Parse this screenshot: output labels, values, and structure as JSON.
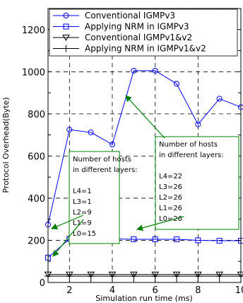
{
  "chart_data": {
    "type": "line",
    "title": "",
    "xlabel": "Simulation run time (ms)",
    "ylabel": "Protocol Overhead(Byte)",
    "xlim": [
      1,
      10
    ],
    "ylim": [
      0,
      1300
    ],
    "xticks": [
      2,
      4,
      6,
      8,
      10
    ],
    "yticks": [
      0,
      200,
      400,
      600,
      800,
      1000,
      1200
    ],
    "grid": true,
    "grid_style": "dashed",
    "legend_position": "top",
    "x": [
      1,
      2,
      3,
      4,
      5,
      6,
      7,
      8,
      9,
      10
    ],
    "series": [
      {
        "name": "Conventional IGMPv3",
        "marker": "circle",
        "color": "#0000ff",
        "values": [
          275,
          725,
          712,
          655,
          1005,
          1005,
          943,
          750,
          872,
          832
        ]
      },
      {
        "name": "Applying NRM in IGMPv3",
        "marker": "square",
        "color": "#0000ff",
        "values": [
          118,
          207,
          198,
          207,
          205,
          205,
          205,
          200,
          198,
          198
        ]
      },
      {
        "name": "Conventional IGMPv1&v2",
        "marker": "triangle-down",
        "color": "#000000",
        "values": [
          38,
          38,
          38,
          38,
          38,
          38,
          38,
          38,
          38,
          38
        ]
      },
      {
        "name": "Applying NRM in IGMPv1&v2",
        "marker": "plus",
        "color": "#000000",
        "values": [
          30,
          30,
          30,
          30,
          30,
          30,
          30,
          30,
          30,
          30
        ]
      }
    ],
    "annotations": [
      {
        "lines": [
          "Number of hosts",
          "in different layers:",
          "",
          "L4=1",
          "L3=1",
          "L2=9",
          "L1=9",
          "L0=15"
        ],
        "box_color": "#008000",
        "arrow_color": "#008000",
        "points_to": [
          [
            1,
            275
          ],
          [
            1,
            118
          ]
        ]
      },
      {
        "lines": [
          "Number of hosts",
          "in different layers:",
          "",
          "L4=22",
          "L3=26",
          "L2=26",
          "L1=26",
          "L0=26"
        ],
        "box_color": "#008000",
        "arrow_color": "#008000",
        "points_to": [
          [
            5,
            1005
          ],
          [
            5,
            205
          ]
        ]
      }
    ]
  }
}
